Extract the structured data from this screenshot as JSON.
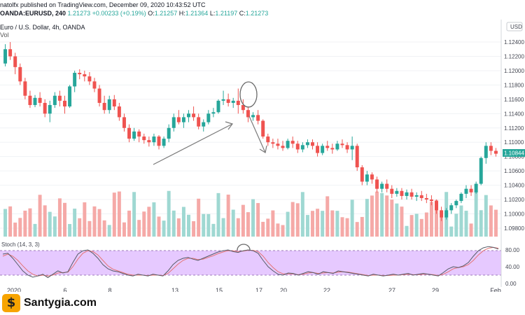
{
  "header": {
    "publish_line": "natolfx published on TradingView.com, December 09, 2020 10:43:52 UTC",
    "symbol_line": "OANDA:EURUSD, 240",
    "last": "1.21273",
    "change": "+0.00233 (+0.19%)",
    "o_label": "O:",
    "o_val": "1.21257",
    "h_label": "H:",
    "h_val": "1.21364",
    "l_label": "L:",
    "l_val": "1.21197",
    "c_label": "C:",
    "c_val": "1.21273",
    "pair_title": "Euro / U.S. Dollar, 4h, OANDA",
    "vol_label": "Vol"
  },
  "currency_badge": "USD",
  "last_price_tag": "1.10844",
  "stoch_label": "Stoch (14, 3, 3)",
  "brand": {
    "logo_glyph": "$",
    "name": "Santygia.com"
  },
  "chart_data": {
    "type": "candlestick",
    "price_axis": {
      "ticks": [
        "1.12400",
        "1.12200",
        "1.12000",
        "1.11800",
        "1.11600",
        "1.11400",
        "1.11200",
        "1.11000",
        "1.10800",
        "1.10600",
        "1.10400",
        "1.10200",
        "1.10000",
        "1.09800"
      ]
    },
    "stoch_axis": {
      "ticks": [
        "80.00",
        "40.00",
        "0.00"
      ],
      "bands": [
        20,
        80
      ]
    },
    "x_ticks": [
      "2020",
      "6",
      "8",
      "13",
      "15",
      "17",
      "20",
      "22",
      "27",
      "29",
      "Feb"
    ],
    "candles": [
      [
        1.121,
        1.1237,
        1.1206,
        1.123
      ],
      [
        1.123,
        1.124,
        1.1215,
        1.122
      ],
      [
        1.122,
        1.1225,
        1.1195,
        1.1205
      ],
      [
        1.1205,
        1.121,
        1.118,
        1.1185
      ],
      [
        1.1185,
        1.119,
        1.116,
        1.1165
      ],
      [
        1.1165,
        1.1172,
        1.1148,
        1.1152
      ],
      [
        1.1152,
        1.1166,
        1.1149,
        1.1162
      ],
      [
        1.1162,
        1.117,
        1.115,
        1.1155
      ],
      [
        1.1155,
        1.116,
        1.1135,
        1.114
      ],
      [
        1.114,
        1.1158,
        1.1128,
        1.1152
      ],
      [
        1.1152,
        1.117,
        1.1148,
        1.1165
      ],
      [
        1.1165,
        1.1172,
        1.115,
        1.1158
      ],
      [
        1.1158,
        1.1165,
        1.114,
        1.115
      ],
      [
        1.115,
        1.118,
        1.1148,
        1.1178
      ],
      [
        1.1178,
        1.12,
        1.117,
        1.1197
      ],
      [
        1.1197,
        1.1202,
        1.1188,
        1.1195
      ],
      [
        1.1195,
        1.12,
        1.1185,
        1.1192
      ],
      [
        1.1192,
        1.1198,
        1.118,
        1.1185
      ],
      [
        1.1185,
        1.119,
        1.117,
        1.1175
      ],
      [
        1.1175,
        1.118,
        1.115,
        1.1155
      ],
      [
        1.1155,
        1.1165,
        1.114,
        1.1145
      ],
      [
        1.1145,
        1.1165,
        1.114,
        1.116
      ],
      [
        1.116,
        1.1166,
        1.1145,
        1.115
      ],
      [
        1.115,
        1.1155,
        1.113,
        1.1135
      ],
      [
        1.1135,
        1.114,
        1.1115,
        1.112
      ],
      [
        1.112,
        1.1125,
        1.11,
        1.1105
      ],
      [
        1.1105,
        1.112,
        1.1102,
        1.1115
      ],
      [
        1.1115,
        1.1118,
        1.11,
        1.1108
      ],
      [
        1.1108,
        1.1112,
        1.1098,
        1.1103
      ],
      [
        1.1103,
        1.1108,
        1.1094,
        1.11
      ],
      [
        1.11,
        1.1112,
        1.1095,
        1.1108
      ],
      [
        1.1108,
        1.111,
        1.109,
        1.1095
      ],
      [
        1.1095,
        1.1108,
        1.1092,
        1.1105
      ],
      [
        1.1105,
        1.1125,
        1.11,
        1.112
      ],
      [
        1.112,
        1.114,
        1.1115,
        1.1135
      ],
      [
        1.1135,
        1.1145,
        1.1125,
        1.1128
      ],
      [
        1.1128,
        1.114,
        1.112,
        1.1135
      ],
      [
        1.1135,
        1.1145,
        1.1128,
        1.114
      ],
      [
        1.114,
        1.115,
        1.113,
        1.1135
      ],
      [
        1.1135,
        1.114,
        1.1118,
        1.1122
      ],
      [
        1.1122,
        1.1132,
        1.1115,
        1.1128
      ],
      [
        1.1128,
        1.1145,
        1.1125,
        1.114
      ],
      [
        1.114,
        1.1148,
        1.1135,
        1.1142
      ],
      [
        1.1142,
        1.116,
        1.114,
        1.1158
      ],
      [
        1.1158,
        1.1172,
        1.1152,
        1.116
      ],
      [
        1.116,
        1.1168,
        1.115,
        1.1155
      ],
      [
        1.1155,
        1.1162,
        1.1148,
        1.1158
      ],
      [
        1.1158,
        1.1175,
        1.114,
        1.1152
      ],
      [
        1.1152,
        1.116,
        1.114,
        1.1145
      ],
      [
        1.1145,
        1.115,
        1.1128,
        1.1135
      ],
      [
        1.1135,
        1.1142,
        1.113,
        1.1138
      ],
      [
        1.1138,
        1.1145,
        1.1125,
        1.113
      ],
      [
        1.113,
        1.1132,
        1.1105,
        1.1108
      ],
      [
        1.1108,
        1.1112,
        1.1095,
        1.11
      ],
      [
        1.11,
        1.1105,
        1.1092,
        1.1098
      ],
      [
        1.1098,
        1.1105,
        1.109,
        1.1095
      ],
      [
        1.1095,
        1.1102,
        1.1088,
        1.1092
      ],
      [
        1.1092,
        1.1105,
        1.109,
        1.1102
      ],
      [
        1.1102,
        1.1108,
        1.1092,
        1.1098
      ],
      [
        1.1098,
        1.1102,
        1.1085,
        1.109
      ],
      [
        1.109,
        1.11,
        1.1086,
        1.1096
      ],
      [
        1.1096,
        1.1104,
        1.1092,
        1.11
      ],
      [
        1.11,
        1.1104,
        1.109,
        1.1095
      ],
      [
        1.1095,
        1.11,
        1.108,
        1.1085
      ],
      [
        1.1085,
        1.1098,
        1.1082,
        1.1095
      ],
      [
        1.1095,
        1.1102,
        1.1088,
        1.1092
      ],
      [
        1.1092,
        1.1098,
        1.1084,
        1.109
      ],
      [
        1.109,
        1.1102,
        1.1088,
        1.1098
      ],
      [
        1.1098,
        1.1104,
        1.1092,
        1.1096
      ],
      [
        1.1096,
        1.11,
        1.1085,
        1.109
      ],
      [
        1.109,
        1.1108,
        1.1075,
        1.1095
      ],
      [
        1.1095,
        1.1098,
        1.106,
        1.1065
      ],
      [
        1.1065,
        1.1068,
        1.104,
        1.1045
      ],
      [
        1.1045,
        1.106,
        1.104,
        1.1055
      ],
      [
        1.1055,
        1.1058,
        1.1042,
        1.1048
      ],
      [
        1.1048,
        1.1052,
        1.103,
        1.1035
      ],
      [
        1.1035,
        1.1045,
        1.103,
        1.1042
      ],
      [
        1.1042,
        1.1048,
        1.103,
        1.1035
      ],
      [
        1.1035,
        1.104,
        1.1022,
        1.1028
      ],
      [
        1.1028,
        1.1036,
        1.1024,
        1.1032
      ],
      [
        1.1032,
        1.1036,
        1.102,
        1.1025
      ],
      [
        1.1025,
        1.1034,
        1.102,
        1.103
      ],
      [
        1.103,
        1.1035,
        1.102,
        1.1024
      ],
      [
        1.1024,
        1.103,
        1.1018,
        1.1026
      ],
      [
        1.1026,
        1.1032,
        1.1018,
        1.1022
      ],
      [
        1.1022,
        1.1028,
        1.1015,
        1.102
      ],
      [
        1.102,
        1.1026,
        1.1012,
        1.1018
      ],
      [
        1.1018,
        1.102,
        1.1,
        1.1005
      ],
      [
        1.1005,
        1.101,
        1.099,
        1.0995
      ],
      [
        1.0995,
        1.1008,
        1.0992,
        1.1005
      ],
      [
        1.1005,
        1.1015,
        1.1,
        1.1012
      ],
      [
        1.1012,
        1.102,
        1.1008,
        1.1018
      ],
      [
        1.1018,
        1.103,
        1.1015,
        1.1028
      ],
      [
        1.1028,
        1.104,
        1.1022,
        1.1035
      ],
      [
        1.1035,
        1.104,
        1.1025,
        1.103
      ],
      [
        1.103,
        1.1045,
        1.1028,
        1.1042
      ],
      [
        1.1042,
        1.108,
        1.104,
        1.1078
      ],
      [
        1.1078,
        1.11,
        1.107,
        1.1095
      ],
      [
        1.1095,
        1.11,
        1.1082,
        1.1088
      ],
      [
        1.1088,
        1.1092,
        1.108,
        1.1084
      ]
    ],
    "stoch_k": [
      70,
      72,
      60,
      45,
      30,
      20,
      15,
      18,
      22,
      14,
      22,
      30,
      25,
      28,
      50,
      70,
      78,
      80,
      72,
      60,
      45,
      35,
      30,
      28,
      24,
      20,
      18,
      22,
      20,
      18,
      22,
      20,
      18,
      30,
      45,
      55,
      60,
      62,
      58,
      55,
      60,
      65,
      70,
      75,
      78,
      80,
      76,
      74,
      78,
      80,
      78,
      72,
      55,
      40,
      30,
      22,
      20,
      25,
      24,
      20,
      24,
      28,
      26,
      22,
      28,
      26,
      24,
      30,
      28,
      26,
      24,
      22,
      20,
      18,
      22,
      20,
      18,
      20,
      22,
      20,
      22,
      24,
      20,
      22,
      24,
      22,
      20,
      18,
      26,
      35,
      40,
      38,
      42,
      50,
      65,
      78,
      85,
      88,
      86,
      82
    ],
    "stoch_d": [
      65,
      70,
      65,
      55,
      42,
      30,
      22,
      18,
      20,
      18,
      20,
      25,
      26,
      27,
      40,
      58,
      72,
      78,
      76,
      68,
      55,
      42,
      34,
      30,
      26,
      22,
      20,
      20,
      20,
      19,
      20,
      20,
      19,
      24,
      35,
      46,
      55,
      60,
      60,
      57,
      58,
      62,
      66,
      71,
      75,
      78,
      78,
      76,
      77,
      79,
      79,
      76,
      65,
      50,
      38,
      28,
      23,
      23,
      23,
      21,
      22,
      25,
      26,
      24,
      25,
      26,
      25,
      27,
      28,
      27,
      25,
      23,
      21,
      19,
      20,
      20,
      19,
      19,
      20,
      20,
      21,
      22,
      21,
      21,
      22,
      22,
      21,
      19,
      22,
      28,
      35,
      38,
      40,
      45,
      55,
      68,
      78,
      84,
      86,
      84
    ]
  }
}
